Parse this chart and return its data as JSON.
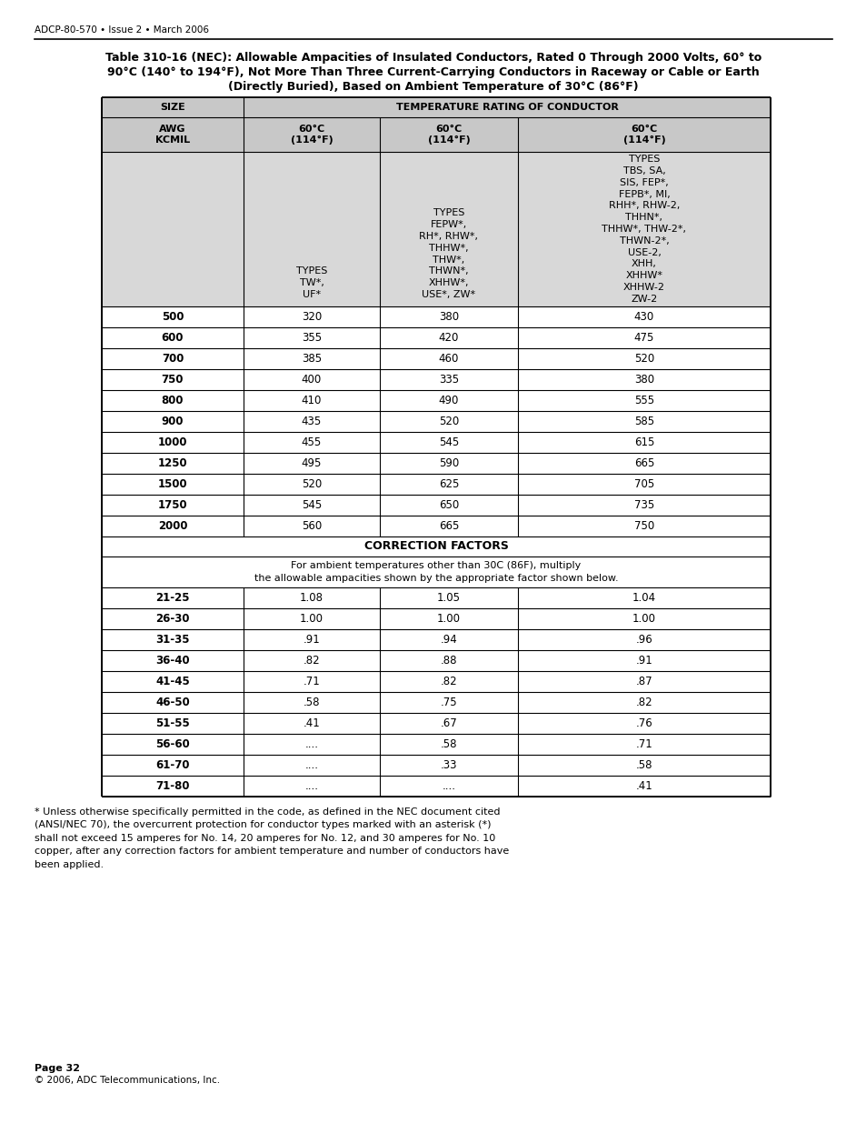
{
  "header_text": "ADCP-80-570 • Issue 2 • March 2006",
  "title_line1": "Table 310-16 (NEC): Allowable Ampacities of Insulated Conductors, Rated 0 Through 2000 Volts, 60° to",
  "title_line2": "90°C (140° to 194°F), Not More Than Three Current-Carrying Conductors in Raceway or Cable or Earth",
  "title_line3": "(Directly Buried), Based on Ambient Temperature of 30°C (86°F)",
  "col1_type_header": "TYPES\nTW*,\nUF*",
  "col2_type_header": "TYPES\nFEPW*,\nRH*, RHW*,\nTHHW*,\nTHW*,\nTHWN*,\nXHHW*,\nUSE*, ZW*",
  "col3_type_header": "TYPES\nTBS, SA,\nSIS, FEP*,\nFEPB*, MI,\nRHH*, RHW-2,\nTHHN*,\nTHHW*, THW-2*,\nTHWN-2*,\nUSE-2,\nXHH,\nXHHW*\nXHHW-2\nZW-2",
  "data_rows": [
    [
      "500",
      "320",
      "380",
      "430"
    ],
    [
      "600",
      "355",
      "420",
      "475"
    ],
    [
      "700",
      "385",
      "460",
      "520"
    ],
    [
      "750",
      "400",
      "335",
      "380"
    ],
    [
      "800",
      "410",
      "490",
      "555"
    ],
    [
      "900",
      "435",
      "520",
      "585"
    ],
    [
      "1000",
      "455",
      "545",
      "615"
    ],
    [
      "1250",
      "495",
      "590",
      "665"
    ],
    [
      "1500",
      "520",
      "625",
      "705"
    ],
    [
      "1750",
      "545",
      "650",
      "735"
    ],
    [
      "2000",
      "560",
      "665",
      "750"
    ]
  ],
  "correction_title": "CORRECTION FACTORS",
  "correction_text": "For ambient temperatures other than 30C (86F), multiply\nthe allowable ampacities shown by the appropriate factor shown below.",
  "correction_rows": [
    [
      "21-25",
      "1.08",
      "1.05",
      "1.04"
    ],
    [
      "26-30",
      "1.00",
      "1.00",
      "1.00"
    ],
    [
      "31-35",
      ".91",
      ".94",
      ".96"
    ],
    [
      "36-40",
      ".82",
      ".88",
      ".91"
    ],
    [
      "41-45",
      ".71",
      ".82",
      ".87"
    ],
    [
      "46-50",
      ".58",
      ".75",
      ".82"
    ],
    [
      "51-55",
      ".41",
      ".67",
      ".76"
    ],
    [
      "56-60",
      "....",
      ".58",
      ".71"
    ],
    [
      "61-70",
      "....",
      ".33",
      ".58"
    ],
    [
      "71-80",
      "....",
      "....",
      ".41"
    ]
  ],
  "footnote": "* Unless otherwise specifically permitted in the code, as defined in the NEC document cited\n(ANSI/NEC 70), the overcurrent protection for conductor types marked with an asterisk (*)\nshall not exceed 15 amperes for No. 14, 20 amperes for No. 12, and 30 amperes for No. 10\ncopper, after any correction factors for ambient temperature and number of conductors have\nbeen applied.",
  "footer_line1": "Page 32",
  "footer_line2": "© 2006, ADC Telecommunications, Inc.",
  "bg_color": "#ffffff",
  "header_bg": "#c8c8c8",
  "type_row_bg": "#d8d8d8",
  "data_bg": "#ffffff"
}
